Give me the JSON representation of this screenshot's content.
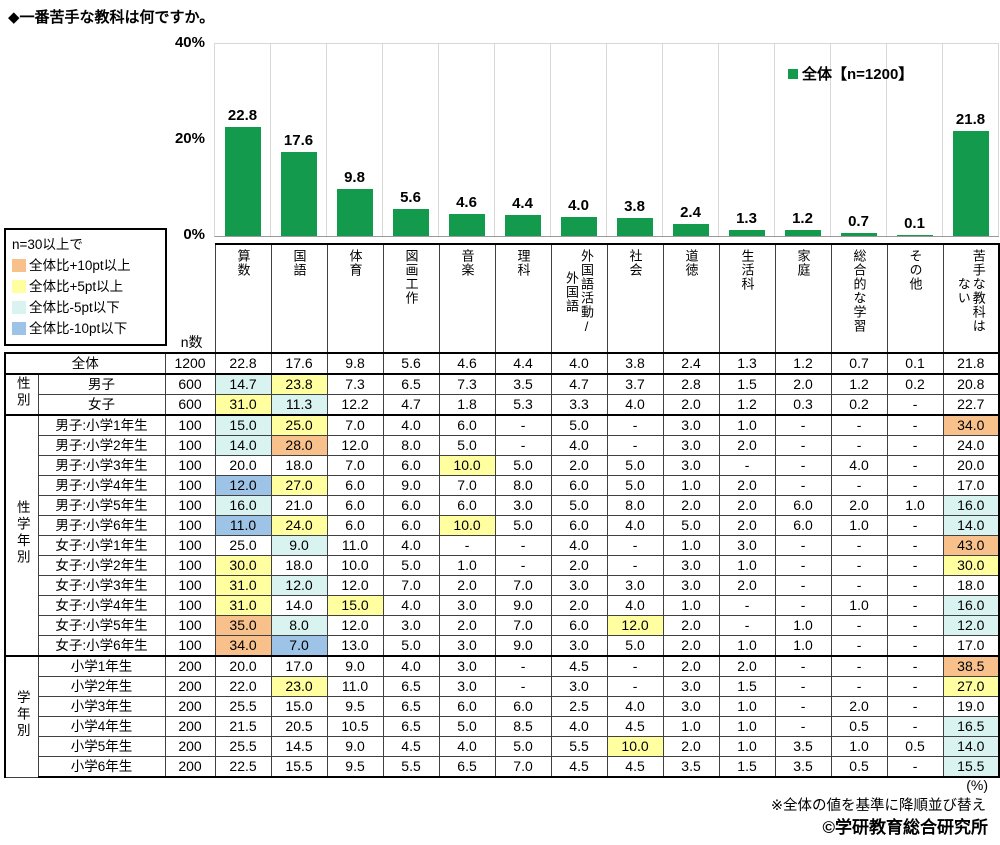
{
  "title": "◆一番苦手な教科は何ですか。",
  "chart_data": {
    "type": "bar",
    "title": "一番苦手な教科は何ですか。",
    "categories": [
      "算数",
      "国語",
      "体育",
      "図画工作",
      "音楽",
      "理科",
      "外国語活動/外国語",
      "社会",
      "道徳",
      "生活科",
      "家庭",
      "総合的な学習",
      "その他",
      "苦手な教科はない"
    ],
    "values": [
      22.8,
      17.6,
      9.8,
      5.6,
      4.6,
      4.4,
      4.0,
      3.8,
      2.4,
      1.3,
      1.2,
      0.7,
      0.1,
      21.8
    ],
    "xlabel": "",
    "ylabel": "%",
    "ylim": [
      0,
      40
    ],
    "yticks": [
      "40%",
      "20%",
      "0%"
    ],
    "grid": "vertical-category-separators",
    "legend_position": "top-right-inside",
    "legend_label": "全体【n=1200】",
    "bar_color": "#149a4c"
  },
  "color_legend": {
    "heading": "n=30以上で",
    "items": [
      {
        "key": "orange",
        "label": "全体比+10pt以上",
        "color": "#f8c18c"
      },
      {
        "key": "yellow",
        "label": "全体比+5pt以上",
        "color": "#ffffa0"
      },
      {
        "key": "cyan",
        "label": "全体比-5pt以下",
        "color": "#d9f3f0"
      },
      {
        "key": "blue",
        "label": "全体比-10pt以下",
        "color": "#9dc3e6"
      }
    ]
  },
  "table": {
    "n_header": "n数",
    "column_headers": [
      "算数",
      "国語",
      "体育",
      "図画工作",
      "音楽",
      "理科",
      "外国語活動/\n外国語",
      "社会",
      "道徳",
      "生活科",
      "家庭",
      "総合的な学習",
      "その他",
      "苦手な教科は\nない"
    ],
    "rows": [
      {
        "full": true,
        "label": "全体",
        "n": "1200",
        "v": [
          "22.8",
          "17.6",
          "9.8",
          "5.6",
          "4.6",
          "4.4",
          "4.0",
          "3.8",
          "2.4",
          "1.3",
          "1.2",
          "0.7",
          "0.1",
          "21.8"
        ],
        "hl": {}
      },
      {
        "g": "性別",
        "gs": 2,
        "label": "男子",
        "n": "600",
        "v": [
          "14.7",
          "23.8",
          "7.3",
          "6.5",
          "7.3",
          "3.5",
          "4.7",
          "3.7",
          "2.8",
          "1.5",
          "2.0",
          "1.2",
          "0.2",
          "20.8"
        ],
        "hl": {
          "0": "cyan",
          "1": "yellow"
        }
      },
      {
        "label": "女子",
        "n": "600",
        "v": [
          "31.0",
          "11.3",
          "12.2",
          "4.7",
          "1.8",
          "5.3",
          "3.3",
          "4.0",
          "2.0",
          "1.2",
          "0.3",
          "0.2",
          "-",
          "22.7"
        ],
        "hl": {
          "0": "yellow",
          "1": "cyan"
        }
      },
      {
        "g": "性学年別",
        "gs": 12,
        "label": "男子:小学1年生",
        "n": "100",
        "v": [
          "15.0",
          "25.0",
          "7.0",
          "4.0",
          "6.0",
          "-",
          "5.0",
          "-",
          "3.0",
          "1.0",
          "-",
          "-",
          "-",
          "34.0"
        ],
        "hl": {
          "0": "cyan",
          "1": "yellow",
          "13": "orange"
        }
      },
      {
        "label": "男子:小学2年生",
        "n": "100",
        "v": [
          "14.0",
          "28.0",
          "12.0",
          "8.0",
          "5.0",
          "-",
          "4.0",
          "-",
          "3.0",
          "2.0",
          "-",
          "-",
          "-",
          "24.0"
        ],
        "hl": {
          "0": "cyan",
          "1": "orange"
        }
      },
      {
        "label": "男子:小学3年生",
        "n": "100",
        "v": [
          "20.0",
          "18.0",
          "7.0",
          "6.0",
          "10.0",
          "5.0",
          "2.0",
          "5.0",
          "3.0",
          "-",
          "-",
          "4.0",
          "-",
          "20.0"
        ],
        "hl": {
          "4": "yellow"
        }
      },
      {
        "label": "男子:小学4年生",
        "n": "100",
        "v": [
          "12.0",
          "27.0",
          "6.0",
          "9.0",
          "7.0",
          "8.0",
          "6.0",
          "5.0",
          "1.0",
          "2.0",
          "-",
          "-",
          "-",
          "17.0"
        ],
        "hl": {
          "0": "blue",
          "1": "yellow"
        }
      },
      {
        "label": "男子:小学5年生",
        "n": "100",
        "v": [
          "16.0",
          "21.0",
          "6.0",
          "6.0",
          "6.0",
          "3.0",
          "5.0",
          "8.0",
          "2.0",
          "2.0",
          "6.0",
          "2.0",
          "1.0",
          "16.0"
        ],
        "hl": {
          "0": "cyan",
          "13": "cyan"
        }
      },
      {
        "label": "男子:小学6年生",
        "n": "100",
        "v": [
          "11.0",
          "24.0",
          "6.0",
          "6.0",
          "10.0",
          "5.0",
          "6.0",
          "4.0",
          "5.0",
          "2.0",
          "6.0",
          "1.0",
          "-",
          "14.0"
        ],
        "hl": {
          "0": "blue",
          "1": "yellow",
          "4": "yellow",
          "13": "cyan"
        }
      },
      {
        "label": "女子:小学1年生",
        "n": "100",
        "v": [
          "25.0",
          "9.0",
          "11.0",
          "4.0",
          "-",
          "-",
          "4.0",
          "-",
          "1.0",
          "3.0",
          "-",
          "-",
          "-",
          "43.0"
        ],
        "hl": {
          "1": "cyan",
          "13": "orange"
        }
      },
      {
        "label": "女子:小学2年生",
        "n": "100",
        "v": [
          "30.0",
          "18.0",
          "10.0",
          "5.0",
          "1.0",
          "-",
          "2.0",
          "-",
          "3.0",
          "1.0",
          "-",
          "-",
          "-",
          "30.0"
        ],
        "hl": {
          "0": "yellow",
          "13": "yellow"
        }
      },
      {
        "label": "女子:小学3年生",
        "n": "100",
        "v": [
          "31.0",
          "12.0",
          "12.0",
          "7.0",
          "2.0",
          "7.0",
          "3.0",
          "3.0",
          "3.0",
          "2.0",
          "-",
          "-",
          "-",
          "18.0"
        ],
        "hl": {
          "0": "yellow",
          "1": "cyan"
        }
      },
      {
        "label": "女子:小学4年生",
        "n": "100",
        "v": [
          "31.0",
          "14.0",
          "15.0",
          "4.0",
          "3.0",
          "9.0",
          "2.0",
          "4.0",
          "1.0",
          "-",
          "-",
          "1.0",
          "-",
          "16.0"
        ],
        "hl": {
          "0": "yellow",
          "2": "yellow",
          "13": "cyan"
        }
      },
      {
        "label": "女子:小学5年生",
        "n": "100",
        "v": [
          "35.0",
          "8.0",
          "12.0",
          "3.0",
          "2.0",
          "7.0",
          "6.0",
          "12.0",
          "2.0",
          "-",
          "1.0",
          "-",
          "-",
          "12.0"
        ],
        "hl": {
          "0": "orange",
          "1": "cyan",
          "7": "yellow",
          "13": "cyan"
        }
      },
      {
        "label": "女子:小学6年生",
        "n": "100",
        "v": [
          "34.0",
          "7.0",
          "13.0",
          "5.0",
          "3.0",
          "9.0",
          "3.0",
          "5.0",
          "2.0",
          "1.0",
          "1.0",
          "-",
          "-",
          "17.0"
        ],
        "hl": {
          "0": "orange",
          "1": "blue"
        }
      },
      {
        "g": "学年別",
        "gs": 6,
        "label": "小学1年生",
        "n": "200",
        "v": [
          "20.0",
          "17.0",
          "9.0",
          "4.0",
          "3.0",
          "-",
          "4.5",
          "-",
          "2.0",
          "2.0",
          "-",
          "-",
          "-",
          "38.5"
        ],
        "hl": {
          "13": "orange"
        }
      },
      {
        "label": "小学2年生",
        "n": "200",
        "v": [
          "22.0",
          "23.0",
          "11.0",
          "6.5",
          "3.0",
          "-",
          "3.0",
          "-",
          "3.0",
          "1.5",
          "-",
          "-",
          "-",
          "27.0"
        ],
        "hl": {
          "1": "yellow",
          "13": "yellow"
        }
      },
      {
        "label": "小学3年生",
        "n": "200",
        "v": [
          "25.5",
          "15.0",
          "9.5",
          "6.5",
          "6.0",
          "6.0",
          "2.5",
          "4.0",
          "3.0",
          "1.0",
          "-",
          "2.0",
          "-",
          "19.0"
        ],
        "hl": {}
      },
      {
        "label": "小学4年生",
        "n": "200",
        "v": [
          "21.5",
          "20.5",
          "10.5",
          "6.5",
          "5.0",
          "8.5",
          "4.0",
          "4.5",
          "1.0",
          "1.0",
          "-",
          "0.5",
          "-",
          "16.5"
        ],
        "hl": {
          "13": "cyan"
        }
      },
      {
        "label": "小学5年生",
        "n": "200",
        "v": [
          "25.5",
          "14.5",
          "9.0",
          "4.5",
          "4.0",
          "5.0",
          "5.5",
          "10.0",
          "2.0",
          "1.0",
          "3.5",
          "1.0",
          "0.5",
          "14.0"
        ],
        "hl": {
          "7": "yellow",
          "13": "cyan"
        }
      },
      {
        "label": "小学6年生",
        "n": "200",
        "v": [
          "22.5",
          "15.5",
          "9.5",
          "5.5",
          "6.5",
          "7.0",
          "4.5",
          "4.5",
          "3.5",
          "1.5",
          "3.5",
          "0.5",
          "-",
          "15.5"
        ],
        "hl": {
          "13": "cyan"
        }
      }
    ]
  },
  "footnotes": {
    "percent": "(%)",
    "sort_note": "※全体の値を基準に降順並び替え",
    "copyright": "©学研教育総合研究所"
  }
}
